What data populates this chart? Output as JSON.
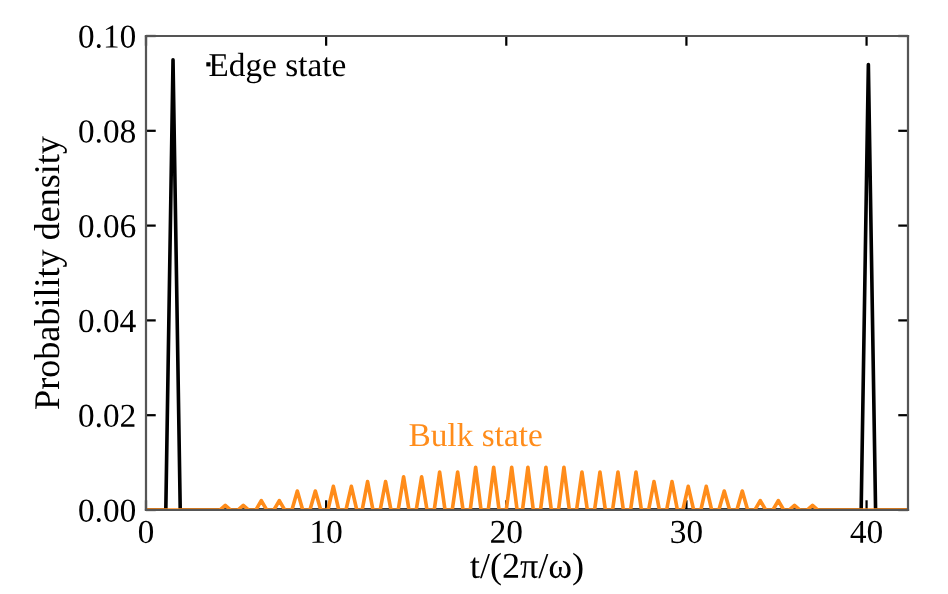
{
  "chart_data": {
    "type": "line",
    "xlabel": "t/(2π/ω)",
    "ylabel": "Probability density",
    "xlim": [
      0,
      42.3
    ],
    "ylim": [
      0,
      0.1
    ],
    "xticks": [
      0,
      10,
      20,
      30,
      40
    ],
    "yticks": [
      {
        "value": 0,
        "label": "0.00"
      },
      {
        "value": 0.02,
        "label": "0.02"
      },
      {
        "value": 0.04,
        "label": "0.04"
      },
      {
        "value": 0.06,
        "label": "0.06"
      },
      {
        "value": 0.08,
        "label": "0.08"
      },
      {
        "value": 0.1,
        "label": "0.10"
      }
    ],
    "grid": false,
    "legend": "top left",
    "marker": "none",
    "line_style": "solid",
    "series": [
      {
        "name": "Edge state",
        "color": "#000000",
        "x": [
          0,
          1.1,
          1.5,
          1.9,
          39.7,
          40.1,
          40.5,
          42.3
        ],
        "values": [
          0,
          0,
          0.095,
          0,
          0,
          0.094,
          0,
          0
        ]
      },
      {
        "name": "Bulk state",
        "color": "#ff8c1a",
        "x": [
          0,
          4.1,
          4.4,
          4.7,
          5.1,
          5.4,
          5.7,
          6.1,
          6.4,
          6.7,
          7.1,
          7.4,
          7.7,
          8.1,
          8.4,
          8.7,
          9.1,
          9.4,
          9.7,
          10.1,
          10.4,
          10.7,
          11.1,
          11.4,
          11.7,
          12.0,
          12.3,
          12.6,
          13.0,
          13.3,
          13.6,
          14.0,
          14.3,
          14.6,
          15.0,
          15.3,
          15.6,
          16.0,
          16.3,
          16.6,
          17.0,
          17.3,
          17.6,
          18.0,
          18.3,
          18.6,
          19.0,
          19.3,
          19.6,
          20.0,
          20.3,
          20.6,
          20.9,
          21.2,
          21.5,
          21.9,
          22.2,
          22.5,
          22.9,
          23.2,
          23.5,
          23.9,
          24.2,
          24.5,
          24.9,
          25.2,
          25.5,
          25.9,
          26.2,
          26.5,
          26.9,
          27.2,
          27.5,
          27.9,
          28.2,
          28.5,
          28.9,
          29.2,
          29.5,
          29.8,
          30.1,
          30.4,
          30.8,
          31.1,
          31.4,
          31.8,
          32.1,
          32.4,
          32.8,
          33.1,
          33.4,
          33.8,
          34.1,
          34.4,
          34.8,
          35.1,
          35.4,
          35.7,
          36.0,
          36.3,
          36.7,
          37.0,
          37.3,
          42.3
        ],
        "values": [
          0,
          0,
          0.001,
          0,
          0,
          0.001,
          0,
          0,
          0.002,
          0,
          0,
          0.002,
          0,
          0,
          0.004,
          0,
          0,
          0.004,
          0,
          0,
          0.005,
          0,
          0,
          0.005,
          0,
          0,
          0.006,
          0,
          0,
          0.006,
          0,
          0,
          0.007,
          0,
          0,
          0.007,
          0,
          0,
          0.008,
          0,
          0,
          0.008,
          0,
          0,
          0.009,
          0,
          0,
          0.009,
          0,
          0,
          0.009,
          0,
          0,
          0.009,
          0,
          0,
          0.009,
          0,
          0,
          0.009,
          0,
          0,
          0.008,
          0,
          0,
          0.008,
          0,
          0,
          0.008,
          0,
          0,
          0.008,
          0,
          0,
          0.006,
          0,
          0,
          0.006,
          0,
          0,
          0.005,
          0,
          0,
          0.005,
          0,
          0,
          0.004,
          0,
          0,
          0.004,
          0,
          0,
          0.002,
          0,
          0,
          0.002,
          0,
          0,
          0.001,
          0,
          0,
          0.001,
          0,
          0
        ]
      }
    ]
  }
}
